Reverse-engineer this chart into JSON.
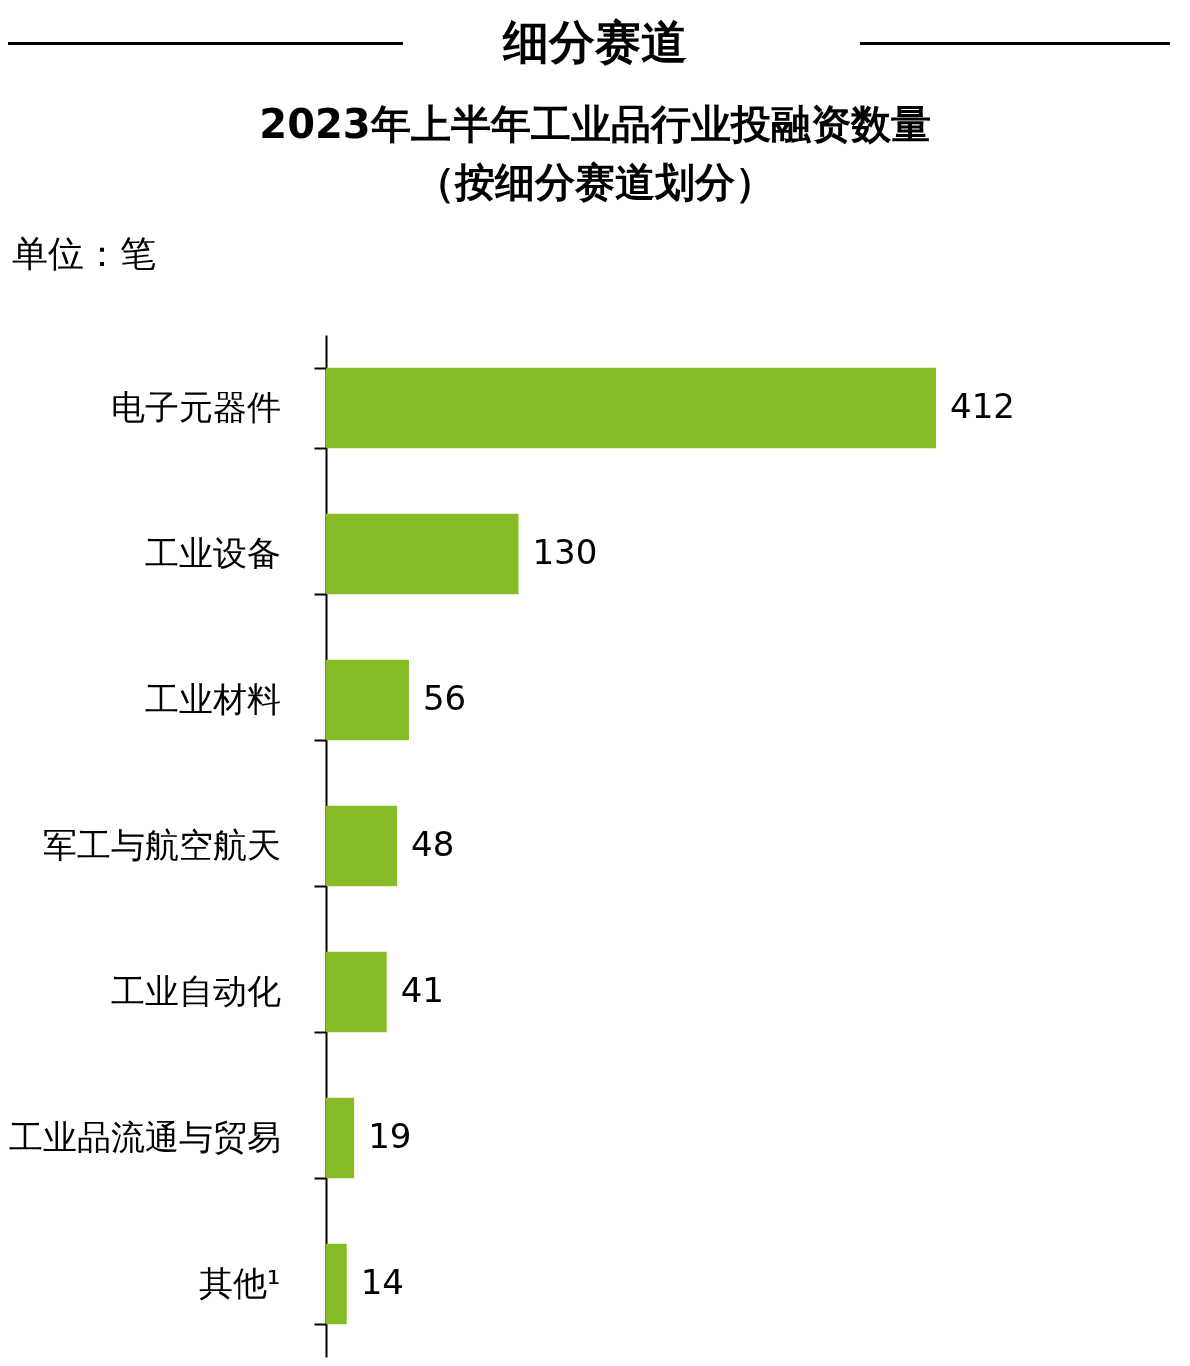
{
  "chart_data": {
    "type": "bar",
    "orientation": "horizontal",
    "title": "细分赛道",
    "subtitle": "2023年上半年工业品行业投融资数量（按细分赛道划分）",
    "annotations": [
      "单位：笔"
    ],
    "categories": [
      "电子元器件",
      "工业设备",
      "工业材料",
      "军工与航空航天",
      "工业自动化",
      "工业品流通与贸易",
      "其他¹"
    ],
    "values": [
      412,
      130,
      56,
      48,
      41,
      19,
      14
    ],
    "color": "#86bc25",
    "data_labels": true
  }
}
